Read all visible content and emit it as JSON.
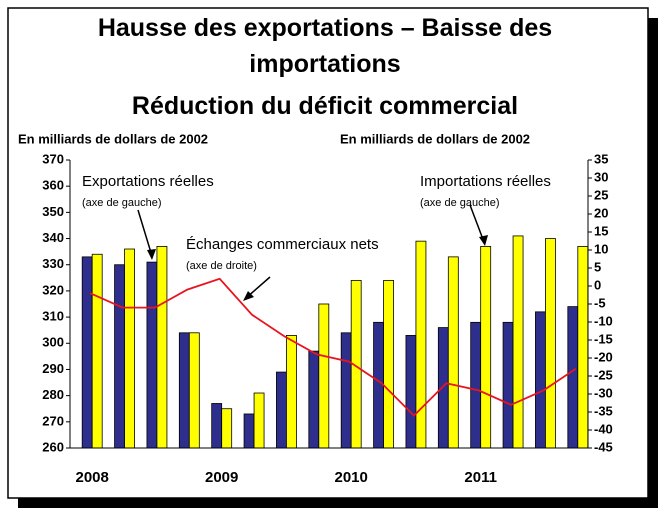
{
  "chart_data": {
    "type": "bar",
    "title": "Hausse des exportations – Baisse des importations",
    "subtitle": "Réduction du déficit commercial",
    "y_label": "En milliards de dollars de 2002",
    "y2_label": "En milliards de dollars de 2002",
    "categories": [
      "2008",
      null,
      null,
      null,
      "2009",
      null,
      null,
      null,
      "2010",
      null,
      null,
      null,
      "2011",
      null,
      null,
      null
    ],
    "series": [
      {
        "name": "Exportations réelles",
        "note": "(axe de gauche)",
        "type": "bar",
        "color": "#2e2e8c",
        "values": [
          333,
          330,
          331,
          304,
          277,
          273,
          289,
          297,
          304,
          308,
          303,
          306,
          308,
          308,
          312,
          314
        ]
      },
      {
        "name": "Importations réelles",
        "note": "(axe de gauche)",
        "type": "bar",
        "color": "#ffff00",
        "values": [
          334,
          336,
          337,
          304,
          275,
          281,
          303,
          315,
          324,
          324,
          339,
          333,
          337,
          341,
          340,
          337
        ]
      },
      {
        "name": "Échanges commerciaux nets",
        "note": "(axe de droite)",
        "type": "line",
        "axis": "y2",
        "color": "#e8141e",
        "values": [
          -2,
          -6,
          -6,
          -1,
          2,
          -8,
          -14,
          -19,
          -21,
          -27,
          -36,
          -27,
          -29,
          -33,
          -29,
          -23
        ]
      }
    ],
    "ylim": [
      260,
      370
    ],
    "yticks": [
      260,
      270,
      280,
      290,
      300,
      310,
      320,
      330,
      340,
      350,
      360,
      370
    ],
    "y2lim": [
      -45,
      35
    ],
    "y2ticks": [
      -45,
      -40,
      -35,
      -30,
      -25,
      -20,
      -15,
      -10,
      -5,
      0,
      5,
      10,
      15,
      20,
      25,
      30,
      35
    ]
  }
}
